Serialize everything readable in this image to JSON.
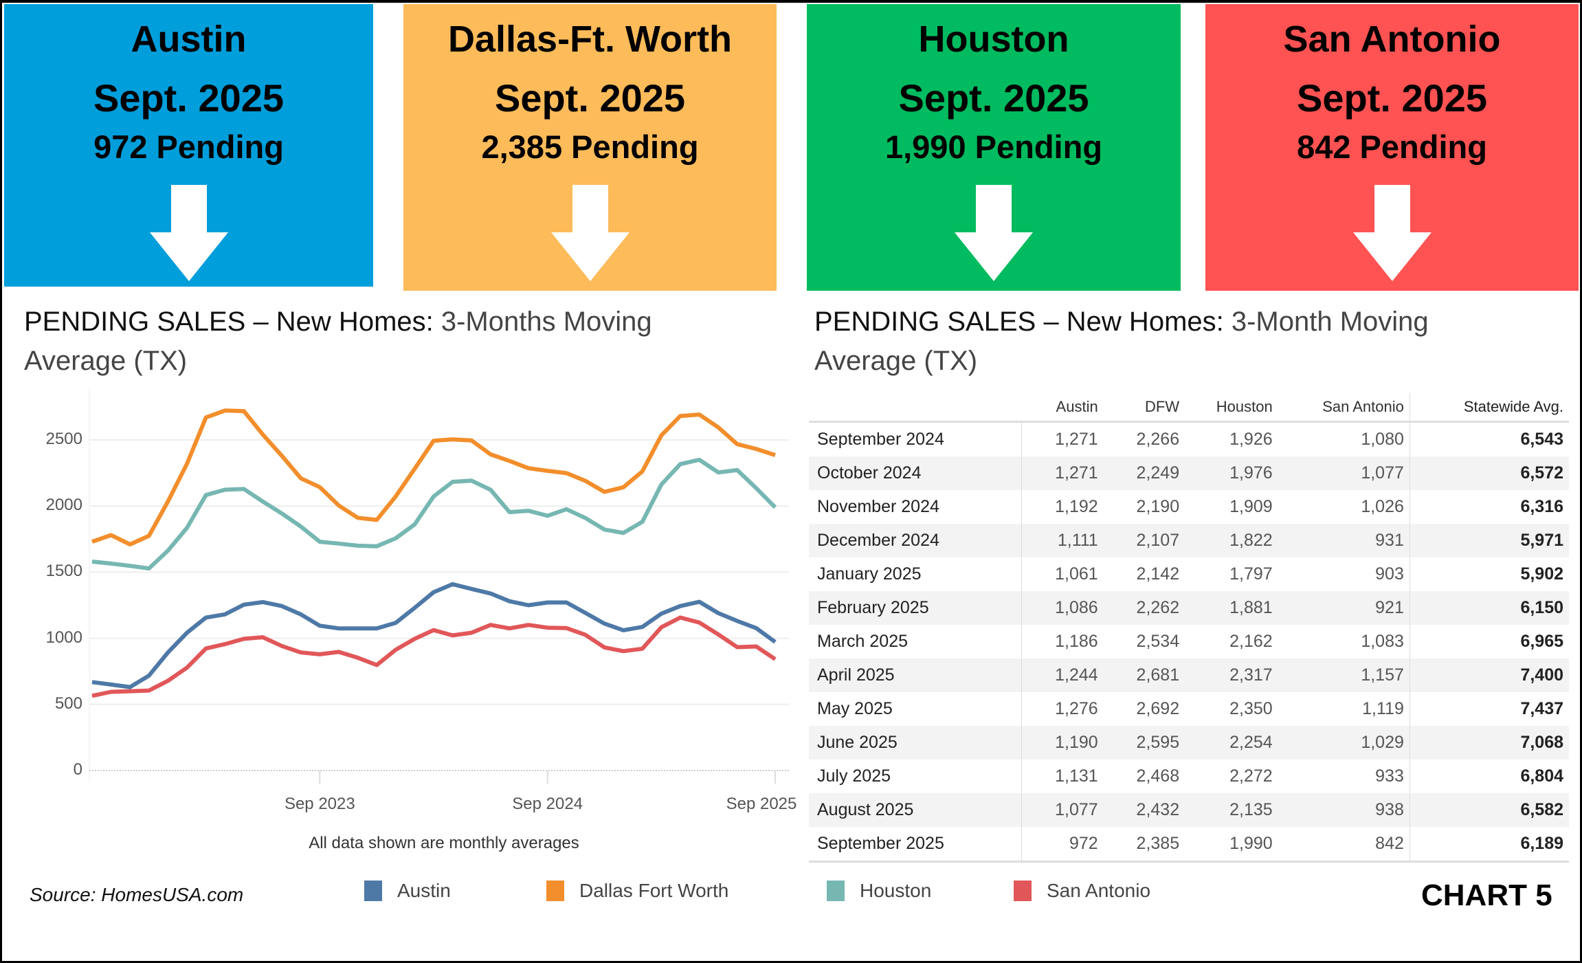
{
  "boxes": [
    {
      "city": "Austin",
      "month": "Sept. 2025",
      "pending": "972 Pending",
      "color": "#009edb",
      "arrow": "down-arrow-icon"
    },
    {
      "city": "Dallas-Ft. Worth",
      "month": "Sept. 2025",
      "pending": "2,385 Pending",
      "color": "#fdbb5a",
      "arrow": "down-arrow-icon"
    },
    {
      "city": "Houston",
      "month": "Sept. 2025",
      "pending": "1,990 Pending",
      "color": "#00bb5f",
      "arrow": "down-arrow-icon"
    },
    {
      "city": "San Antonio",
      "month": "Sept. 2025",
      "pending": "842 Pending",
      "color": "#ff5252",
      "arrow": "down-arrow-icon"
    }
  ],
  "left_title": {
    "part1": "PENDING SALES – New Homes: ",
    "part2": "3-Months  Moving",
    "part3": "Average (TX)"
  },
  "right_title": {
    "part1": "PENDING SALES – New Homes:  ",
    "part2": "3-Month Moving",
    "part3": "Average (TX)"
  },
  "chart_data": {
    "type": "line",
    "title": "PENDING SALES – New Homes: 3-Months Moving Average (TX)",
    "x_start": "Sep 2022",
    "x_end": "Sep 2025",
    "x_ticks": [
      "Sep 2023",
      "Sep 2024",
      "Sep 2025"
    ],
    "y_ticks": [
      0,
      500,
      1000,
      1500,
      2000,
      2500
    ],
    "ylim": [
      0,
      2800
    ],
    "grid": true,
    "note": "All data shown are monthly averages",
    "legend_position": "bottom",
    "series": [
      {
        "name": "Austin",
        "color": "#4e79a7",
        "values": [
          669,
          650,
          631,
          718,
          893,
          1042,
          1157,
          1181,
          1254,
          1274,
          1244,
          1181,
          1095,
          1075,
          1075,
          1075,
          1117,
          1230,
          1349,
          1409,
          1373,
          1339,
          1280,
          1250,
          1271,
          1271,
          1192,
          1111,
          1061,
          1086,
          1186,
          1244,
          1276,
          1190,
          1131,
          1077,
          972
        ]
      },
      {
        "name": "Dallas Fort Worth",
        "color": "#f28e2b",
        "values": [
          1730,
          1780,
          1710,
          1775,
          2035,
          2320,
          2670,
          2722,
          2718,
          2540,
          2380,
          2210,
          2143,
          2004,
          1911,
          1895,
          2073,
          2282,
          2494,
          2504,
          2496,
          2391,
          2341,
          2286,
          2266,
          2249,
          2190,
          2107,
          2142,
          2262,
          2534,
          2681,
          2692,
          2595,
          2468,
          2432,
          2385
        ]
      },
      {
        "name": "Houston",
        "color": "#76b7b2",
        "values": [
          1580,
          1565,
          1548,
          1528,
          1663,
          1835,
          2083,
          2123,
          2129,
          2034,
          1944,
          1845,
          1730,
          1716,
          1700,
          1696,
          1756,
          1861,
          2073,
          2183,
          2192,
          2123,
          1954,
          1964,
          1926,
          1976,
          1909,
          1822,
          1797,
          1881,
          2162,
          2317,
          2350,
          2254,
          2272,
          2135,
          1990
        ]
      },
      {
        "name": "San Antonio",
        "color": "#e15759",
        "values": [
          565,
          595,
          600,
          605,
          679,
          778,
          923,
          956,
          996,
          1008,
          942,
          893,
          879,
          897,
          853,
          798,
          913,
          996,
          1062,
          1022,
          1042,
          1101,
          1075,
          1101,
          1080,
          1077,
          1026,
          931,
          903,
          921,
          1083,
          1157,
          1119,
          1029,
          933,
          938,
          842
        ]
      }
    ]
  },
  "table": {
    "headers": [
      "",
      "Austin",
      "DFW",
      "Houston",
      "San Antonio",
      "Statewide Avg."
    ],
    "rows": [
      [
        "September 2024",
        "1,271",
        "2,266",
        "1,926",
        "1,080",
        "6,543"
      ],
      [
        "October 2024",
        "1,271",
        "2,249",
        "1,976",
        "1,077",
        "6,572"
      ],
      [
        "November 2024",
        "1,192",
        "2,190",
        "1,909",
        "1,026",
        "6,316"
      ],
      [
        "December 2024",
        "1,111",
        "2,107",
        "1,822",
        "931",
        "5,971"
      ],
      [
        "January 2025",
        "1,061",
        "2,142",
        "1,797",
        "903",
        "5,902"
      ],
      [
        "February 2025",
        "1,086",
        "2,262",
        "1,881",
        "921",
        "6,150"
      ],
      [
        "March 2025",
        "1,186",
        "2,534",
        "2,162",
        "1,083",
        "6,965"
      ],
      [
        "April 2025",
        "1,244",
        "2,681",
        "2,317",
        "1,157",
        "7,400"
      ],
      [
        "May 2025",
        "1,276",
        "2,692",
        "2,350",
        "1,119",
        "7,437"
      ],
      [
        "June 2025",
        "1,190",
        "2,595",
        "2,254",
        "1,029",
        "7,068"
      ],
      [
        "July 2025",
        "1,131",
        "2,468",
        "2,272",
        "933",
        "6,804"
      ],
      [
        "August 2025",
        "1,077",
        "2,432",
        "2,135",
        "938",
        "6,582"
      ],
      [
        "September 2025",
        "972",
        "2,385",
        "1,990",
        "842",
        "6,189"
      ]
    ]
  },
  "source": "Source: HomesUSA.com",
  "chart_label": "CHART 5"
}
